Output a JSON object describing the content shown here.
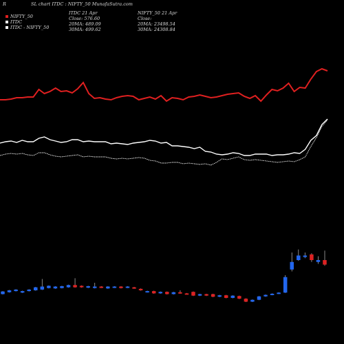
{
  "header": {
    "left_marker": "R",
    "title": "SL chart ITDC : NIFTY_50 MunafaSutra.com"
  },
  "legend": {
    "items": [
      {
        "label": "NIFTY_50",
        "color": "#e02020"
      },
      {
        "label": "ITDC",
        "color": "#ffffff"
      },
      {
        "label": "ITDC - NIFTY_50",
        "color": "#ffffff"
      }
    ]
  },
  "info_itdc": {
    "line1": "ITDC 21 Apr",
    "line2": "Close: 576.60",
    "line3": "20MA: 489.09",
    "line4": "30MA: 499.62"
  },
  "info_nifty": {
    "line1": "NIFTY_50 21 Apr",
    "line2": "Close:",
    "line3": "20MA: 23498.54",
    "line4": "30MA: 24308.84"
  },
  "colors": {
    "background": "#000000",
    "nifty_line": "#e02020",
    "itdc_line": "#ffffff",
    "ratio_line": "#ffffff",
    "candle_up": "#2266ee",
    "candle_down": "#dd2222",
    "wick": "#aaaaaa"
  },
  "chart_data": {
    "type": "line",
    "title": "SL chart ITDC : NIFTY_50",
    "x_count": 60,
    "y_scale": "relative (unlabeled)",
    "series": [
      {
        "name": "NIFTY_50",
        "values": [
          143,
          143,
          144,
          146,
          146,
          147,
          147,
          158,
          152,
          155,
          160,
          155,
          156,
          153,
          159,
          168,
          152,
          145,
          146,
          144,
          143,
          146,
          148,
          149,
          148,
          143,
          145,
          147,
          144,
          149,
          141,
          146,
          145,
          143,
          147,
          148,
          150,
          148,
          146,
          147,
          149,
          151,
          152,
          153,
          148,
          145,
          149,
          141,
          150,
          158,
          156,
          160,
          167,
          155,
          161,
          160,
          173,
          184,
          188,
          185
        ]
      },
      {
        "name": "ITDC",
        "values": [
          80,
          82,
          83,
          81,
          84,
          82,
          82,
          87,
          89,
          85,
          83,
          81,
          82,
          85,
          85,
          82,
          83,
          82,
          82,
          82,
          79,
          80,
          79,
          78,
          80,
          81,
          82,
          84,
          83,
          80,
          81,
          76,
          76,
          75,
          74,
          72,
          74,
          68,
          67,
          64,
          63,
          64,
          66,
          65,
          62,
          62,
          64,
          64,
          64,
          62,
          63,
          63,
          64,
          66,
          65,
          71,
          84,
          91,
          107,
          115
        ]
      },
      {
        "name": "ITDC - NIFTY_50",
        "values": [
          62,
          64,
          65,
          64,
          65,
          63,
          62,
          66,
          66,
          63,
          61,
          60,
          61,
          62,
          63,
          60,
          61,
          60,
          60,
          60,
          58,
          57,
          58,
          57,
          58,
          59,
          58,
          55,
          54,
          51,
          51,
          52,
          52,
          50,
          51,
          50,
          49,
          50,
          48,
          52,
          57,
          56,
          58,
          60,
          56,
          55,
          56,
          55,
          54,
          53,
          52,
          53,
          54,
          53,
          56,
          60,
          75,
          88,
          104,
          114
        ]
      }
    ],
    "candles": {
      "type": "candlestick",
      "series": [
        {
          "o": 50,
          "c": 57,
          "h": 58,
          "l": 49
        },
        {
          "o": 55,
          "c": 60,
          "h": 61,
          "l": 54
        },
        {
          "o": 58,
          "c": 62,
          "h": 63,
          "l": 57
        },
        {
          "o": 54,
          "c": 58,
          "h": 59,
          "l": 53
        },
        {
          "o": 58,
          "c": 62,
          "h": 63,
          "l": 57
        },
        {
          "o": 60,
          "c": 68,
          "h": 69,
          "l": 59
        },
        {
          "o": 62,
          "c": 70,
          "h": 90,
          "l": 61
        },
        {
          "o": 66,
          "c": 72,
          "h": 73,
          "l": 65
        },
        {
          "o": 65,
          "c": 70,
          "h": 71,
          "l": 64
        },
        {
          "o": 66,
          "c": 71,
          "h": 72,
          "l": 65
        },
        {
          "o": 68,
          "c": 74,
          "h": 75,
          "l": 67
        },
        {
          "o": 74,
          "c": 68,
          "h": 92,
          "l": 67
        },
        {
          "o": 72,
          "c": 68,
          "h": 73,
          "l": 67
        },
        {
          "o": 67,
          "c": 71,
          "h": 72,
          "l": 66
        },
        {
          "o": 66,
          "c": 70,
          "h": 80,
          "l": 65
        },
        {
          "o": 70,
          "c": 67,
          "h": 71,
          "l": 66
        },
        {
          "o": 65,
          "c": 70,
          "h": 71,
          "l": 64
        },
        {
          "o": 67,
          "c": 70,
          "h": 71,
          "l": 66
        },
        {
          "o": 70,
          "c": 66,
          "h": 71,
          "l": 65
        },
        {
          "o": 67,
          "c": 70,
          "h": 71,
          "l": 66
        },
        {
          "o": 68,
          "c": 65,
          "h": 69,
          "l": 64
        },
        {
          "o": 64,
          "c": 60,
          "h": 65,
          "l": 59
        },
        {
          "o": 55,
          "c": 58,
          "h": 59,
          "l": 54
        },
        {
          "o": 58,
          "c": 52,
          "h": 59,
          "l": 51
        },
        {
          "o": 52,
          "c": 56,
          "h": 57,
          "l": 51
        },
        {
          "o": 56,
          "c": 50,
          "h": 57,
          "l": 49
        },
        {
          "o": 50,
          "c": 55,
          "h": 56,
          "l": 49
        },
        {
          "o": 55,
          "c": 52,
          "h": 60,
          "l": 51
        },
        {
          "o": 52,
          "c": 50,
          "h": 53,
          "l": 49
        },
        {
          "o": 56,
          "c": 46,
          "h": 57,
          "l": 45
        },
        {
          "o": 46,
          "c": 50,
          "h": 51,
          "l": 45
        },
        {
          "o": 50,
          "c": 46,
          "h": 51,
          "l": 45
        },
        {
          "o": 50,
          "c": 43,
          "h": 51,
          "l": 42
        },
        {
          "o": 43,
          "c": 47,
          "h": 48,
          "l": 42
        },
        {
          "o": 47,
          "c": 40,
          "h": 48,
          "l": 39
        },
        {
          "o": 40,
          "c": 46,
          "h": 47,
          "l": 39
        },
        {
          "o": 45,
          "c": 38,
          "h": 46,
          "l": 37
        },
        {
          "o": 38,
          "c": 30,
          "h": 39,
          "l": 29
        },
        {
          "o": 30,
          "c": 35,
          "h": 36,
          "l": 29
        },
        {
          "o": 35,
          "c": 44,
          "h": 45,
          "l": 34
        },
        {
          "o": 44,
          "c": 48,
          "h": 49,
          "l": 43
        },
        {
          "o": 48,
          "c": 51,
          "h": 52,
          "l": 47
        },
        {
          "o": 51,
          "c": 54,
          "h": 55,
          "l": 50
        },
        {
          "o": 54,
          "c": 95,
          "h": 100,
          "l": 53
        },
        {
          "o": 115,
          "c": 135,
          "h": 160,
          "l": 110
        },
        {
          "o": 140,
          "c": 152,
          "h": 168,
          "l": 138
        },
        {
          "o": 148,
          "c": 152,
          "h": 160,
          "l": 145
        },
        {
          "o": 155,
          "c": 140,
          "h": 158,
          "l": 135
        },
        {
          "o": 135,
          "c": 140,
          "h": 150,
          "l": 130
        },
        {
          "o": 140,
          "c": 128,
          "h": 165,
          "l": 125
        }
      ]
    }
  }
}
